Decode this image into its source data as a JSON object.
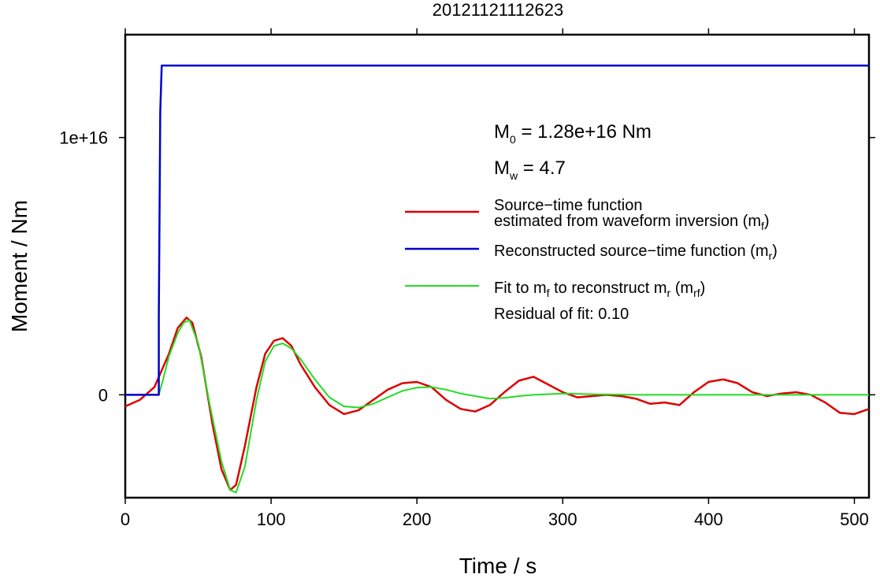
{
  "chart_data": {
    "type": "line",
    "title": "20121121112623",
    "xlabel": "Time / s",
    "ylabel": "Moment / Nm",
    "xlim": [
      0,
      510
    ],
    "ylim": [
      -4000000000000000.0,
      1.4e+16
    ],
    "x_ticks": [
      0,
      100,
      200,
      300,
      400,
      500
    ],
    "x_tick_labels": [
      "0",
      "100",
      "200",
      "300",
      "400",
      "500"
    ],
    "y_ticks": [
      0,
      1e+16
    ],
    "y_tick_labels": [
      "0",
      "1e+16"
    ],
    "grid": false,
    "legend_position": "right",
    "annotations": {
      "m0": "M0 = 1.28e+16 Nm",
      "mw": "Mw = 4.7",
      "residual": "Residual of fit: 0.10"
    },
    "series": [
      {
        "name": "Source−time function estimated from waveform inversion (mf)",
        "color": "#dd0000",
        "x": [
          0,
          10,
          20,
          30,
          36,
          42,
          46,
          52,
          60,
          66,
          72,
          76,
          82,
          90,
          96,
          102,
          108,
          114,
          120,
          130,
          140,
          150,
          160,
          170,
          180,
          190,
          200,
          210,
          220,
          230,
          240,
          250,
          260,
          270,
          280,
          290,
          300,
          310,
          320,
          330,
          340,
          350,
          360,
          370,
          380,
          390,
          400,
          410,
          420,
          430,
          440,
          450,
          460,
          470,
          480,
          490,
          500,
          510
        ],
        "values": [
          -450000000000000.0,
          -200000000000000.0,
          300000000000000.0,
          1600000000000000.0,
          2600000000000000.0,
          3000000000000000.0,
          2800000000000000.0,
          1500000000000000.0,
          -1200000000000000.0,
          -2900000000000000.0,
          -3700000000000000.0,
          -3500000000000000.0,
          -2000000000000000.0,
          300000000000000.0,
          1600000000000000.0,
          2100000000000000.0,
          2200000000000000.0,
          1900000000000000.0,
          1200000000000000.0,
          300000000000000.0,
          -400000000000000.0,
          -750000000000000.0,
          -600000000000000.0,
          -200000000000000.0,
          200000000000000.0,
          450000000000000.0,
          500000000000000.0,
          300000000000000.0,
          -200000000000000.0,
          -550000000000000.0,
          -650000000000000.0,
          -400000000000000.0,
          100000000000000.0,
          550000000000000.0,
          700000000000000.0,
          400000000000000.0,
          100000000000000.0,
          -100000000000000.0,
          -50000000000000.0,
          0.0,
          -50000000000000.0,
          -150000000000000.0,
          -350000000000000.0,
          -300000000000000.0,
          -400000000000000.0,
          100000000000000.0,
          500000000000000.0,
          600000000000000.0,
          450000000000000.0,
          100000000000000.0,
          -50000000000000.0,
          50000000000000.0,
          100000000000000.0,
          0.0,
          -300000000000000.0,
          -700000000000000.0,
          -750000000000000.0,
          -550000000000000.0
        ]
      },
      {
        "name": "Reconstructed source−time function (mr)",
        "color": "#0000cc",
        "x": [
          0,
          23,
          23,
          24,
          25,
          510
        ],
        "values": [
          0,
          0,
          3000000000000000.0,
          1.1e+16,
          1.28e+16,
          1.28e+16
        ]
      },
      {
        "name": "Fit to mf to reconstruct mr (mrf)",
        "color": "#22dd22",
        "x": [
          0,
          23,
          25,
          30,
          36,
          40,
          44,
          50,
          58,
          66,
          72,
          76,
          82,
          90,
          96,
          102,
          108,
          114,
          120,
          130,
          140,
          150,
          160,
          170,
          180,
          190,
          200,
          210,
          220,
          230,
          240,
          250,
          260,
          270,
          280,
          300,
          320,
          350,
          400,
          450,
          510
        ],
        "values": [
          0,
          0,
          400000000000000.0,
          1500000000000000.0,
          2400000000000000.0,
          2800000000000000.0,
          2900000000000000.0,
          2000000000000000.0,
          -400000000000000.0,
          -2600000000000000.0,
          -3700000000000000.0,
          -3800000000000000.0,
          -2800000000000000.0,
          -200000000000000.0,
          1300000000000000.0,
          1900000000000000.0,
          2000000000000000.0,
          1800000000000000.0,
          1400000000000000.0,
          600000000000000.0,
          -100000000000000.0,
          -450000000000000.0,
          -500000000000000.0,
          -350000000000000.0,
          -100000000000000.0,
          150000000000000.0,
          280000000000000.0,
          300000000000000.0,
          200000000000000.0,
          50000000000000.0,
          -50000000000000.0,
          -150000000000000.0,
          -120000000000000.0,
          -50000000000000.0,
          0.0,
          50000000000000.0,
          20000000000000.0,
          0.0,
          0.0,
          0.0,
          0.0
        ]
      }
    ]
  },
  "legend": {
    "red_line1": "Source−time function",
    "red_line2": "estimated from waveform inversion (m",
    "red_sub": "f",
    "red_close": ")",
    "blue_main": "Reconstructed source−time function (m",
    "blue_sub": "r",
    "blue_close": ")",
    "green_part1": "Fit to m",
    "green_sub1": "f",
    "green_part2": " to reconstruct m",
    "green_sub2": "r",
    "green_part3": " (m",
    "green_sub3": "rf",
    "green_close": ")"
  },
  "ann_parts": {
    "m0_base": "M",
    "m0_sub": "0",
    "m0_rest": " = 1.28e+16 Nm",
    "mw_base": "M",
    "mw_sub": "w",
    "mw_rest": " = 4.7"
  }
}
